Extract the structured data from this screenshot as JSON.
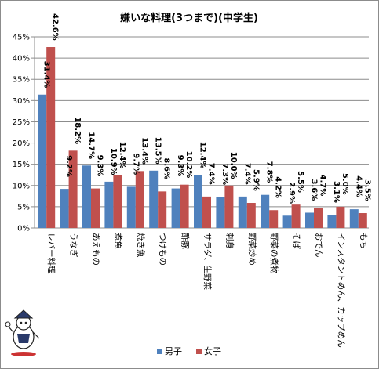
{
  "chart_data": {
    "type": "bar",
    "title": "嫌いな料理(3つまで)(中学生)",
    "categories": [
      "レバー料理",
      "うなぎ",
      "あえもの",
      "煮魚",
      "焼き魚",
      "つけもの",
      "酢豚",
      "サラダ、生野菜",
      "刺身",
      "野菜炒め",
      "野菜の煮物",
      "そば",
      "おでん",
      "インスタントめん、カップめん",
      "もち"
    ],
    "series": [
      {
        "name": "男子",
        "color": "#4f81bd",
        "values": [
          31.4,
          9.2,
          14.7,
          10.9,
          9.7,
          13.5,
          9.3,
          12.4,
          7.3,
          7.4,
          7.8,
          2.9,
          3.6,
          3.1,
          4.4
        ]
      },
      {
        "name": "女子",
        "color": "#c0504d",
        "values": [
          42.6,
          18.2,
          9.3,
          12.4,
          13.4,
          8.6,
          10.2,
          7.4,
          10.0,
          5.9,
          4.2,
          5.5,
          4.7,
          5.0,
          3.5
        ]
      }
    ],
    "value_labels": {
      "男子": [
        "31.4%",
        "9.2%",
        "14.7%",
        "10.9%",
        "9.7%",
        "13.5%",
        "9.3%",
        "12.4%",
        "7.3%",
        "7.4%",
        "7.8%",
        "2.9%",
        "3.6%",
        "3.1%",
        "4.4%"
      ],
      "女子": [
        "42.6%",
        "18.2%",
        "9.3%",
        "12.4%",
        "13.4%",
        "8.6%",
        "10.2%",
        "7.4%",
        "10.0%",
        "5.9%",
        "4.2%",
        "5.5%",
        "4.7%",
        "5.0%",
        "3.5%"
      ]
    },
    "y_ticks": [
      "0%",
      "5%",
      "10%",
      "15%",
      "20%",
      "25%",
      "30%",
      "35%",
      "40%",
      "45%"
    ],
    "ylim": [
      0,
      45
    ],
    "grid": true,
    "legend": "bottom"
  }
}
